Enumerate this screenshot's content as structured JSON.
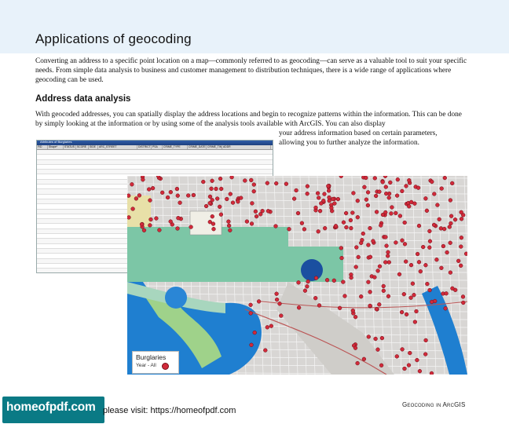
{
  "page": {
    "title": "Applications of geocoding",
    "intro": "Converting an address to a specific point location on a map—commonly referred to as geocoding—can serve as a valuable tool to suit your specific needs. From simple data analysis to business and customer management to distribution techniques, there is a wide range of applications where geocoding can be used.",
    "section_heading": "Address data analysis",
    "section_text": "With geocoded addresses, you can spatially display the address locations and begin to recognize patterns within the information. This can be done by simply looking at the information or by using some of the analysis tools available with ArcGIS. You can also display",
    "section_text_cont": "your address information based on certain parameters, allowing you to further analyze the information."
  },
  "table": {
    "window_title": "Attributes of Burglaries",
    "columns": [
      "FID",
      "Shape*",
      "STATUS",
      "SCORE",
      "SIDE",
      "ARC_STREET",
      "DISTRICT",
      "PSA",
      "CRIME_TYPE",
      "CRIME_DATE",
      "CRIME_TIME",
      "ADDR"
    ]
  },
  "legend": {
    "title": "Burglaries",
    "subtitle": "Year - All",
    "dot_color": "#d12a3a"
  },
  "footer": {
    "book": "Geocoding in ArcGIS",
    "brand": "homeofpdf.com",
    "visit": "please visit: https://homeofpdf.com"
  }
}
